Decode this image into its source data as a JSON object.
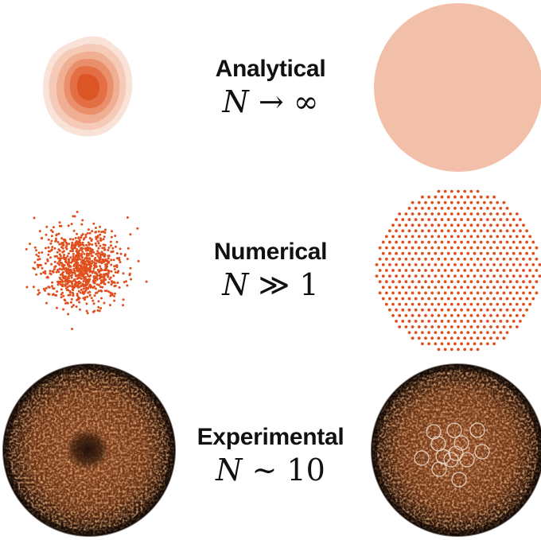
{
  "rows": [
    {
      "title": "Analytical",
      "symbol": "N",
      "relation": "→",
      "value": "∞"
    },
    {
      "title": "Numerical",
      "symbol": "N",
      "relation": "≫",
      "value": "1"
    },
    {
      "title": "Experimental",
      "symbol": "N",
      "relation": "∼",
      "value": "10"
    }
  ],
  "colors": {
    "accent": "#e0501e",
    "density_light": "#f6d9cc",
    "disk_fill": "#f2bfa8",
    "experiment_dark": "#2a1408",
    "experiment_bright": "#d0753a",
    "vortex_ring": "#e8d8cc"
  },
  "icons": {
    "analytical_left": "density-contour-blob",
    "analytical_right": "uniform-disk",
    "numerical_left": "random-point-cloud",
    "numerical_right": "vortex-lattice-disk",
    "experimental_left": "condensate-image-with-dark-core",
    "experimental_right": "condensate-image-with-vortex-rings"
  }
}
